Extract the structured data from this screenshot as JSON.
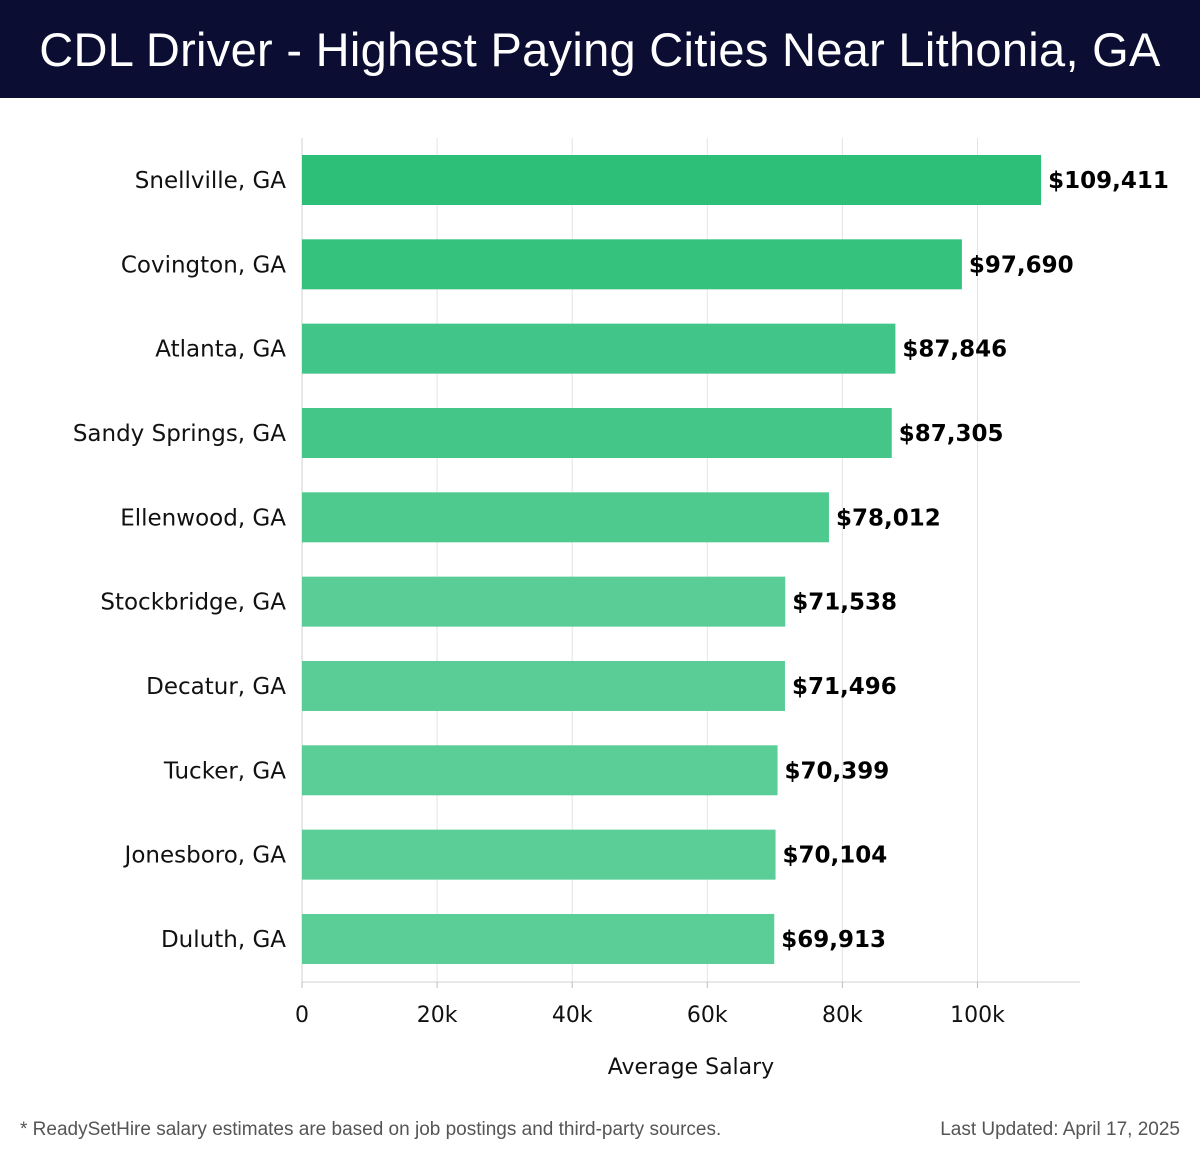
{
  "header": {
    "title": "CDL Driver - Highest Paying Cities Near Lithonia, GA"
  },
  "chart_data": {
    "type": "bar",
    "orientation": "horizontal",
    "categories": [
      "Snellville, GA",
      "Covington, GA",
      "Atlanta, GA",
      "Sandy Springs, GA",
      "Ellenwood, GA",
      "Stockbridge, GA",
      "Decatur, GA",
      "Tucker, GA",
      "Jonesboro, GA",
      "Duluth, GA"
    ],
    "values": [
      109411,
      97690,
      87846,
      87305,
      78012,
      71538,
      71496,
      70399,
      70104,
      69913
    ],
    "data_labels": [
      "$109,411",
      "$97,690",
      "$87,846",
      "$87,305",
      "$78,012",
      "$71,538",
      "$71,496",
      "$70,399",
      "$70,104",
      "$69,913"
    ],
    "bar_colors": [
      "#2dbf78",
      "#34c27d",
      "#42c588",
      "#43c688",
      "#4fca8f",
      "#5acd96",
      "#5acd96",
      "#5bcd97",
      "#5bcd97",
      "#5bcd97"
    ],
    "x_ticks": [
      0,
      20000,
      40000,
      60000,
      80000,
      100000
    ],
    "x_tick_labels": [
      "0",
      "20k",
      "40k",
      "60k",
      "80k",
      "100k"
    ],
    "xlim": [
      0,
      115000
    ],
    "xlabel": "Average Salary",
    "ylabel": "",
    "grid": "vertical"
  },
  "footer": {
    "note": "* ReadySetHire salary estimates are based on job postings and third-party sources.",
    "updated": "Last Updated: April 17, 2025"
  },
  "colors": {
    "header_bg": "#0b0d33",
    "grid": "#e4e4e4"
  }
}
